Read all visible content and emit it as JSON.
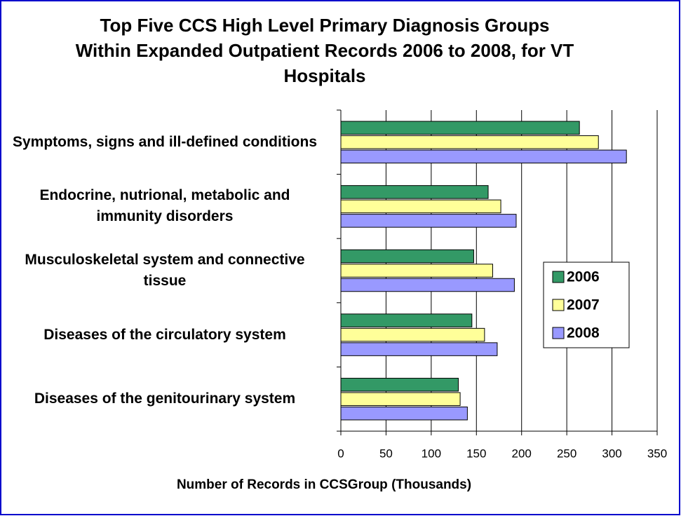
{
  "chart_data": {
    "type": "bar",
    "orientation": "horizontal",
    "title": "Top Five CCS High Level Primary Diagnosis Groups Within Expanded Outpatient Records 2006 to 2008, for VT Hospitals",
    "x_label": "Number of Records in CCSGroup (Thousands)",
    "categories": [
      "Symptoms, signs and ill-defined conditions",
      "Endocrine, nutrional, metabolic and immunity disorders",
      "Musculoskeletal system and connective tissue",
      "Diseases of the circulatory system",
      "Diseases of the genitourinary system"
    ],
    "series": [
      {
        "name": "2006",
        "color": "#339966",
        "values": [
          264,
          163,
          147,
          145,
          130
        ]
      },
      {
        "name": "2007",
        "color": "#ffff99",
        "values": [
          285,
          177,
          168,
          159,
          132
        ]
      },
      {
        "name": "2008",
        "color": "#9999ff",
        "values": [
          316,
          194,
          192,
          173,
          140
        ]
      }
    ],
    "xlim": [
      0,
      350
    ],
    "xticks": [
      0,
      50,
      100,
      150,
      200,
      250,
      300,
      350
    ],
    "grid": true,
    "legend": "right"
  }
}
